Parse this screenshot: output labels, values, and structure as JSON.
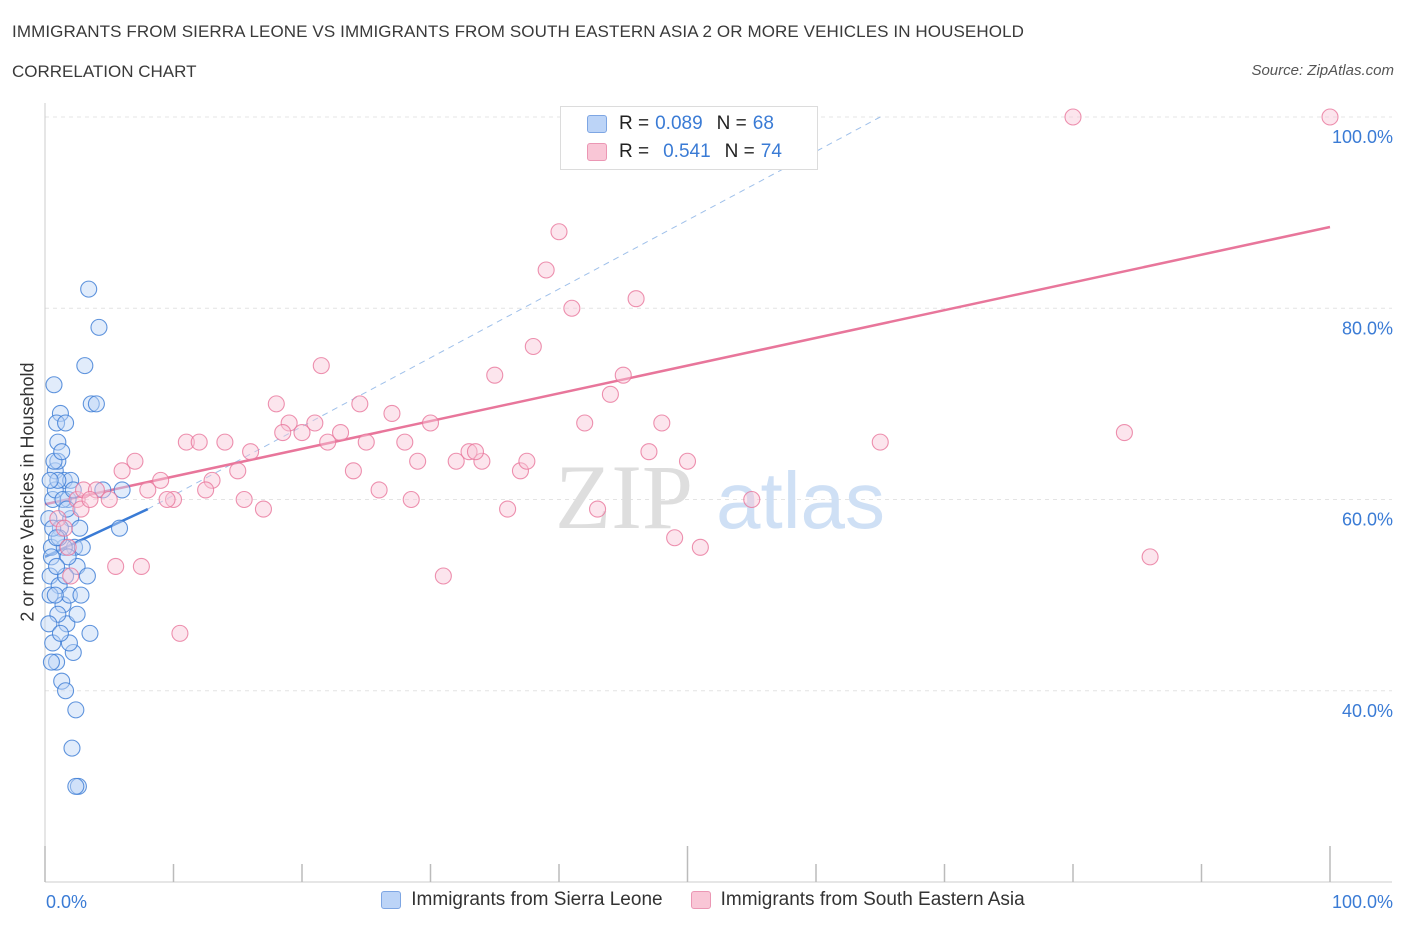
{
  "title": "IMMIGRANTS FROM SIERRA LEONE VS IMMIGRANTS FROM SOUTH EASTERN ASIA 2 OR MORE VEHICLES IN HOUSEHOLD",
  "subtitle": "CORRELATION CHART",
  "source": "Source: ZipAtlas.com",
  "watermark": {
    "zip": "ZIP",
    "atlas": "atlas"
  },
  "legend": {
    "r_label": "R =",
    "n_label": "N =",
    "items": [
      {
        "r": "0.089",
        "n": "68"
      },
      {
        "r": "0.541",
        "n": "74"
      }
    ]
  },
  "colors": {
    "blue": "#3a7bd5",
    "pink": "#e8769b",
    "blue_fill": "#bcd4f7",
    "pink_fill": "#f9c6d6"
  },
  "chart_data": {
    "type": "scatter",
    "xlabel": "",
    "ylabel": "2 or more Vehicles in Household",
    "xlim": [
      0,
      100
    ],
    "ylim": [
      20,
      100
    ],
    "x_ticks_labels": [
      "0.0%",
      "100.0%"
    ],
    "y_ticks": [
      40,
      60,
      80,
      100
    ],
    "y_tick_labels": [
      "40.0%",
      "60.0%",
      "80.0%",
      "100.0%"
    ],
    "grid": true,
    "series": [
      {
        "name": "Immigrants from Sierra Leone",
        "color": "#3a7bd5",
        "trend": {
          "x": [
            0,
            8
          ],
          "y": [
            54,
            59
          ]
        },
        "points": [
          [
            0.3,
            58
          ],
          [
            0.5,
            55
          ],
          [
            0.4,
            52
          ],
          [
            0.6,
            60
          ],
          [
            0.8,
            63
          ],
          [
            1.0,
            66
          ],
          [
            1.2,
            69
          ],
          [
            0.7,
            72
          ],
          [
            0.9,
            68
          ],
          [
            1.5,
            62
          ],
          [
            1.8,
            60
          ],
          [
            2.0,
            58
          ],
          [
            2.3,
            55
          ],
          [
            2.5,
            53
          ],
          [
            1.1,
            51
          ],
          [
            1.4,
            49
          ],
          [
            1.7,
            47
          ],
          [
            2.2,
            44
          ],
          [
            0.6,
            45
          ],
          [
            0.9,
            43
          ],
          [
            1.3,
            41
          ],
          [
            1.6,
            40
          ],
          [
            2.4,
            38
          ],
          [
            3.5,
            46
          ],
          [
            2.1,
            34
          ],
          [
            2.6,
            30
          ],
          [
            2.4,
            30
          ],
          [
            1.9,
            50
          ],
          [
            2.7,
            57
          ],
          [
            3.6,
            70
          ],
          [
            4.2,
            78
          ],
          [
            3.1,
            74
          ],
          [
            3.4,
            82
          ],
          [
            4.0,
            70
          ],
          [
            6.0,
            61
          ],
          [
            5.8,
            57
          ],
          [
            1.0,
            64
          ],
          [
            0.8,
            61
          ],
          [
            1.2,
            57
          ],
          [
            1.5,
            55
          ],
          [
            1.6,
            52
          ],
          [
            0.5,
            54
          ],
          [
            0.4,
            50
          ],
          [
            1.0,
            48
          ],
          [
            1.8,
            54
          ],
          [
            2.0,
            62
          ],
          [
            0.7,
            64
          ],
          [
            0.9,
            53
          ],
          [
            1.1,
            56
          ],
          [
            0.3,
            47
          ],
          [
            2.9,
            55
          ],
          [
            3.3,
            52
          ],
          [
            1.4,
            60
          ],
          [
            2.2,
            61
          ],
          [
            0.6,
            57
          ],
          [
            1.9,
            45
          ],
          [
            1.2,
            46
          ],
          [
            0.5,
            43
          ],
          [
            2.5,
            48
          ],
          [
            1.7,
            59
          ],
          [
            0.8,
            50
          ],
          [
            1.3,
            65
          ],
          [
            1.0,
            62
          ],
          [
            0.4,
            62
          ],
          [
            2.8,
            50
          ],
          [
            1.6,
            68
          ],
          [
            0.9,
            56
          ],
          [
            4.5,
            61
          ]
        ]
      },
      {
        "name": "Immigrants from South Eastern Asia",
        "color": "#e8769b",
        "trend": {
          "x": [
            0,
            100
          ],
          "y": [
            59.5,
            88.5
          ]
        },
        "points": [
          [
            1.0,
            58
          ],
          [
            1.5,
            57
          ],
          [
            2.0,
            52
          ],
          [
            2.5,
            60
          ],
          [
            3.0,
            61
          ],
          [
            4.0,
            61
          ],
          [
            5.0,
            60
          ],
          [
            6.0,
            63
          ],
          [
            7.0,
            64
          ],
          [
            8.0,
            61
          ],
          [
            9.0,
            62
          ],
          [
            10.0,
            60
          ],
          [
            11.0,
            66
          ],
          [
            12.0,
            66
          ],
          [
            13.0,
            62
          ],
          [
            14.0,
            66
          ],
          [
            15.0,
            63
          ],
          [
            16.0,
            65
          ],
          [
            17.0,
            59
          ],
          [
            18.0,
            70
          ],
          [
            19.0,
            68
          ],
          [
            20.0,
            67
          ],
          [
            21.0,
            68
          ],
          [
            22.0,
            66
          ],
          [
            23.0,
            67
          ],
          [
            24.0,
            63
          ],
          [
            25.0,
            66
          ],
          [
            26.0,
            61
          ],
          [
            27.0,
            69
          ],
          [
            28.0,
            66
          ],
          [
            29.0,
            64
          ],
          [
            30.0,
            68
          ],
          [
            31.0,
            52
          ],
          [
            32.0,
            64
          ],
          [
            33.0,
            65
          ],
          [
            34.0,
            64
          ],
          [
            35.0,
            73
          ],
          [
            36.0,
            59
          ],
          [
            37.0,
            63
          ],
          [
            38.0,
            76
          ],
          [
            39.0,
            84
          ],
          [
            40.0,
            88
          ],
          [
            41.0,
            80
          ],
          [
            42.0,
            68
          ],
          [
            43.0,
            59
          ],
          [
            44.0,
            71
          ],
          [
            45.0,
            73
          ],
          [
            46.0,
            81
          ],
          [
            47.0,
            65
          ],
          [
            48.0,
            68
          ],
          [
            49.0,
            56
          ],
          [
            50.0,
            64
          ],
          [
            51.0,
            55
          ],
          [
            55.0,
            60
          ],
          [
            65.0,
            66
          ],
          [
            80.0,
            100
          ],
          [
            84.0,
            67
          ],
          [
            86.0,
            54
          ],
          [
            100.0,
            100
          ],
          [
            1.8,
            55
          ],
          [
            2.8,
            59
          ],
          [
            3.5,
            60
          ],
          [
            5.5,
            53
          ],
          [
            7.5,
            53
          ],
          [
            9.5,
            60
          ],
          [
            10.5,
            46
          ],
          [
            12.5,
            61
          ],
          [
            15.5,
            60
          ],
          [
            18.5,
            67
          ],
          [
            21.5,
            74
          ],
          [
            24.5,
            70
          ],
          [
            28.5,
            60
          ],
          [
            33.5,
            65
          ],
          [
            37.5,
            64
          ]
        ]
      }
    ]
  }
}
